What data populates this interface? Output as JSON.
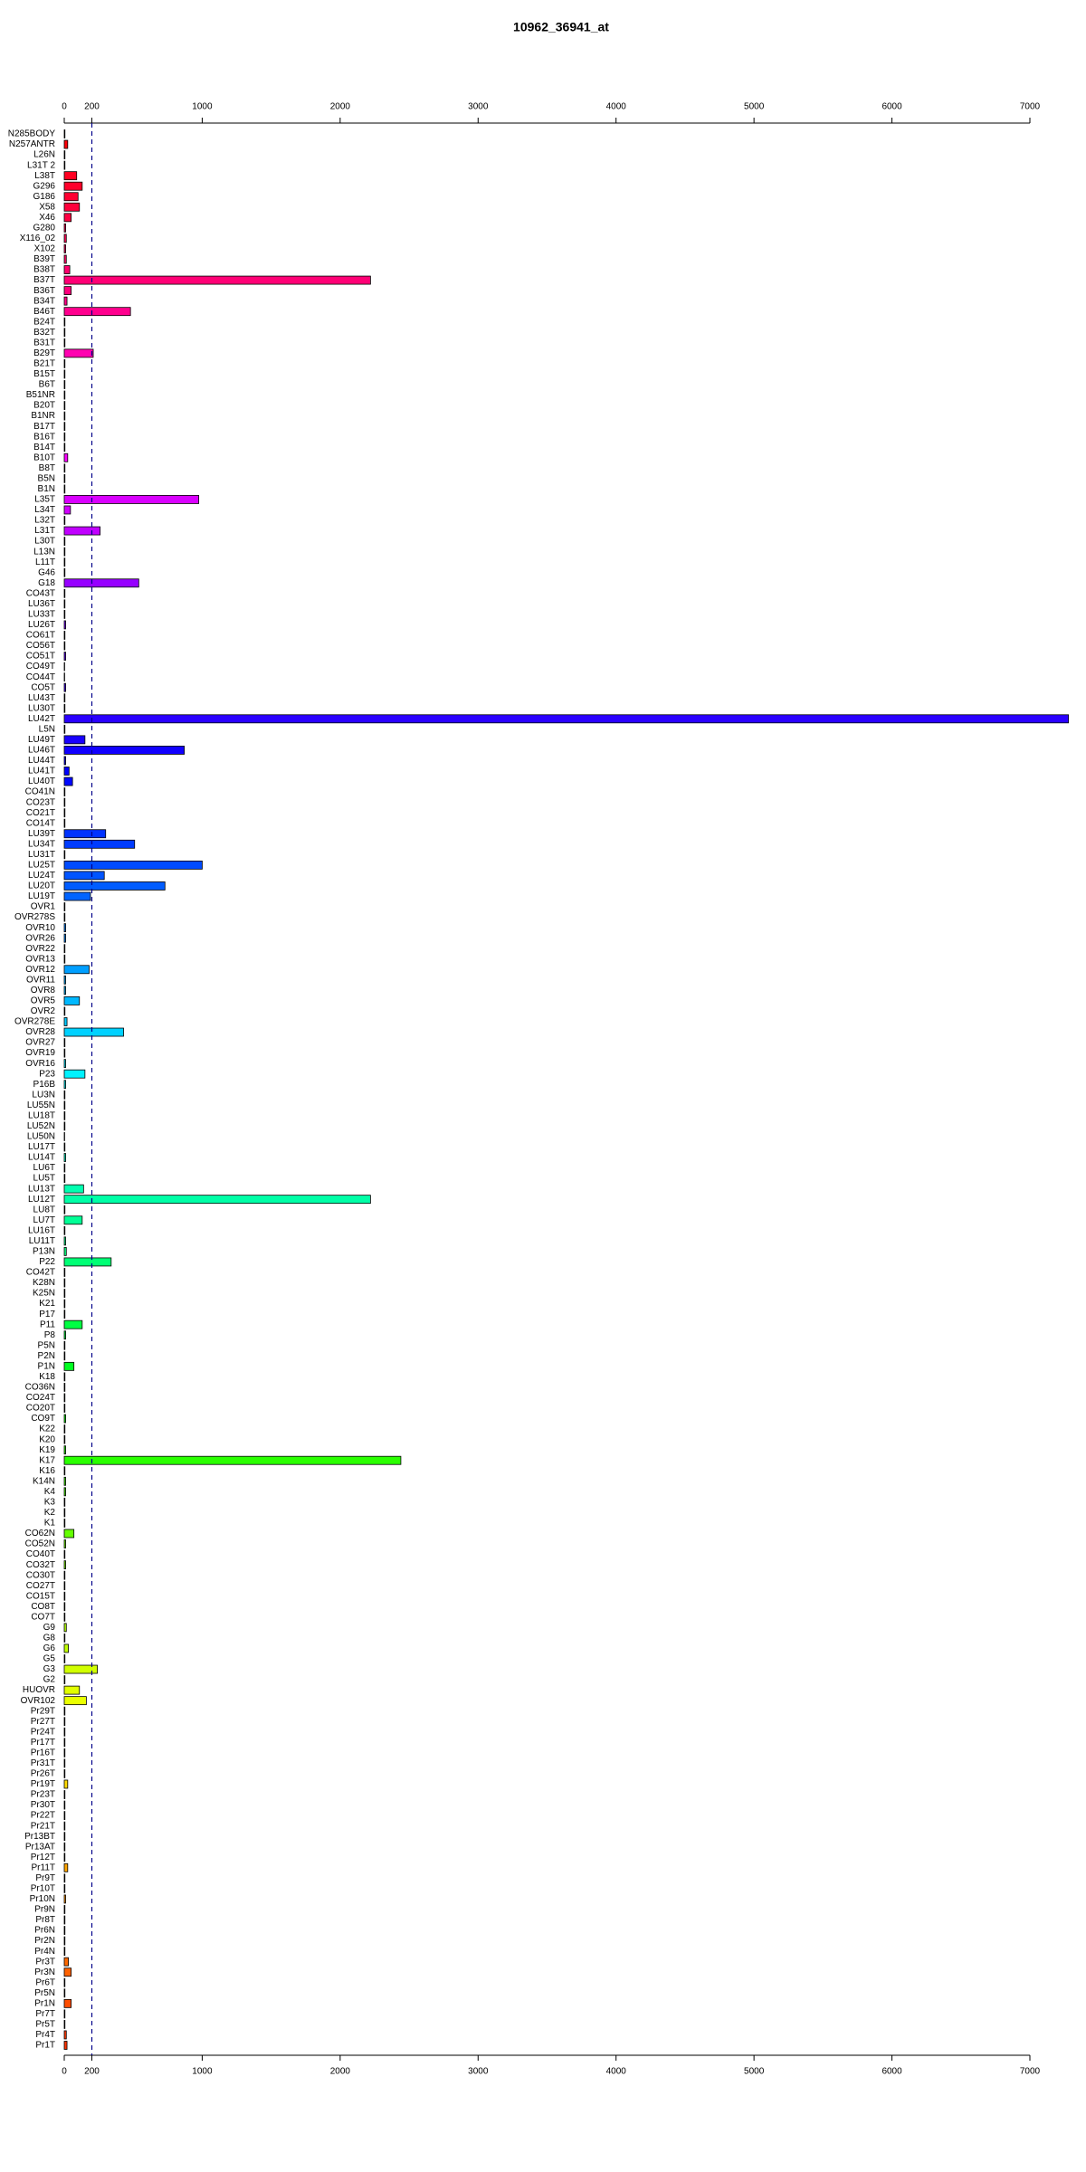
{
  "chart_data": {
    "type": "barh",
    "title": "10962_36941_at",
    "categories": [
      "N285BODY",
      "N257ANTR",
      "L26N",
      "L31T 2",
      "L38T",
      "G296",
      "G186",
      "X58",
      "X46",
      "G280",
      "X116_02",
      "X102",
      "B39T",
      "B38T",
      "B37T",
      "B36T",
      "B34T",
      "B46T",
      "B24T",
      "B32T",
      "B31T",
      "B29T",
      "B21T",
      "B15T",
      "B6T",
      "B51NR",
      "B20T",
      "B1NR",
      "B17T",
      "B16T",
      "B14T",
      "B10T",
      "B8T",
      "B5N",
      "B1N",
      "L35T",
      "L34T",
      "L32T",
      "L31T",
      "L30T",
      "L13N",
      "L11T",
      "G46",
      "G18",
      "CO43T",
      "LU36T",
      "LU33T",
      "LU26T",
      "CO61T",
      "CO56T",
      "CO51T",
      "CO49T",
      "CO44T",
      "CO5T",
      "LU43T",
      "LU30T",
      "LU42T",
      "L5N",
      "LU49T",
      "LU46T",
      "LU44T",
      "LU41T",
      "LU40T",
      "CO41N",
      "CO23T",
      "CO21T",
      "CO14T",
      "LU39T",
      "LU34T",
      "LU31T",
      "LU25T",
      "LU24T",
      "LU20T",
      "LU19T",
      "OVR1",
      "OVR278S",
      "OVR10",
      "OVR26",
      "OVR22",
      "OVR13",
      "OVR12",
      "OVR11",
      "OVR8",
      "OVR5",
      "OVR2",
      "OVR278E",
      "OVR28",
      "OVR27",
      "OVR19",
      "OVR16",
      "P23",
      "P16B",
      "LU3N",
      "LU55N",
      "LU18T",
      "LU52N",
      "LU50N",
      "LU17T",
      "LU14T",
      "LU6T",
      "LU5T",
      "LU13T",
      "LU12T",
      "LU8T",
      "LU7T",
      "LU16T",
      "LU11T",
      "P13N",
      "P22",
      "CO42T",
      "K28N",
      "K25N",
      "K21",
      "P17",
      "P11",
      "P8",
      "P5N",
      "P2N",
      "P1N",
      "K18",
      "CO36N",
      "CO24T",
      "CO20T",
      "CO9T",
      "K22",
      "K20",
      "K19",
      "K17",
      "K16",
      "K14N",
      "K4",
      "K3",
      "K2",
      "K1",
      "CO62N",
      "CO52N",
      "CO40T",
      "CO32T",
      "CO30T",
      "CO27T",
      "CO15T",
      "CO8T",
      "CO7T",
      "G9",
      "G8",
      "G6",
      "G5",
      "G3",
      "G2",
      "HUOVR",
      "OVR102",
      "Pr29T",
      "Pr27T",
      "Pr24T",
      "Pr17T",
      "Pr16T",
      "Pr31T",
      "Pr26T",
      "Pr19T",
      "Pr23T",
      "Pr30T",
      "Pr22T",
      "Pr21T",
      "Pr13BT",
      "Pr13AT",
      "Pr12T",
      "Pr11T",
      "Pr9T",
      "Pr10T",
      "Pr10N",
      "Pr9N",
      "Pr8T",
      "Pr6N",
      "Pr2N",
      "Pr4N",
      "Pr3T",
      "Pr3N",
      "Pr6T",
      "Pr5N",
      "Pr1N",
      "Pr7T",
      "Pr5T",
      "Pr4T",
      "Pr1T"
    ],
    "values": [
      5,
      25,
      5,
      5,
      90,
      130,
      100,
      110,
      50,
      10,
      15,
      10,
      15,
      40,
      2220,
      50,
      20,
      480,
      5,
      5,
      5,
      210,
      5,
      5,
      5,
      5,
      5,
      5,
      5,
      5,
      5,
      25,
      5,
      5,
      5,
      975,
      45,
      5,
      260,
      5,
      5,
      5,
      5,
      540,
      5,
      5,
      5,
      10,
      5,
      5,
      10,
      3,
      3,
      10,
      5,
      5,
      7280,
      5,
      150,
      870,
      10,
      35,
      60,
      5,
      5,
      5,
      5,
      300,
      510,
      5,
      1000,
      290,
      730,
      190,
      5,
      5,
      10,
      10,
      5,
      5,
      180,
      10,
      10,
      110,
      5,
      20,
      430,
      5,
      5,
      10,
      150,
      10,
      5,
      5,
      5,
      5,
      3,
      5,
      10,
      5,
      5,
      140,
      2220,
      5,
      130,
      5,
      10,
      15,
      340,
      5,
      5,
      5,
      5,
      5,
      130,
      10,
      5,
      5,
      70,
      5,
      5,
      5,
      5,
      10,
      5,
      5,
      10,
      2440,
      5,
      10,
      10,
      5,
      5,
      5,
      70,
      10,
      5,
      10,
      5,
      5,
      5,
      5,
      5,
      15,
      5,
      30,
      5,
      240,
      5,
      110,
      160,
      5,
      5,
      5,
      5,
      5,
      5,
      5,
      25,
      5,
      5,
      5,
      5,
      5,
      5,
      5,
      25,
      5,
      5,
      10,
      5,
      5,
      5,
      5,
      5,
      30,
      50,
      5,
      5,
      50,
      5,
      5,
      15,
      20
    ],
    "colors": [
      "#ff0000",
      "#ff00ff",
      "#0000ff",
      "#00ffff",
      "#00ff00",
      "#ffff00",
      "#ff3300"
    ],
    "xlim": [
      0,
      7000
    ],
    "xticks": [
      0,
      200,
      1000,
      2000,
      3000,
      4000,
      5000,
      6000,
      7000
    ],
    "vline": 200
  }
}
